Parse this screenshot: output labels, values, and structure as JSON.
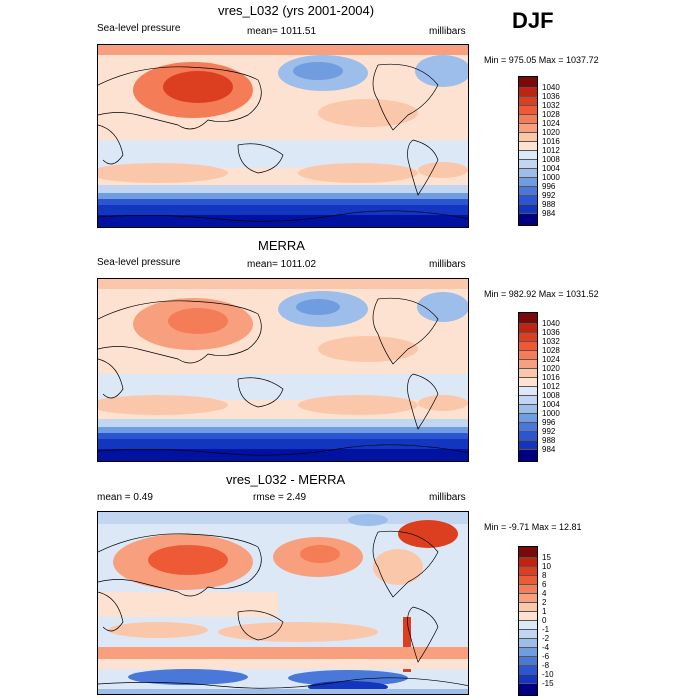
{
  "season": "DJF",
  "colors": {
    "land_line": "#000000",
    "warm": [
      "#fde2d2",
      "#fbc7aa",
      "#f8a07e",
      "#f47c56",
      "#ee5a36",
      "#dc3f20",
      "#bd2412",
      "#7a0a0a"
    ],
    "cool": [
      "#dde8f7",
      "#c2d6f1",
      "#9dbdea",
      "#6f9de0",
      "#4a78d8",
      "#2c56cf",
      "#1236c0",
      "#0012a0",
      "#000080"
    ]
  },
  "panels": [
    {
      "title": "vres_L032 (yrs 2001-2004)",
      "left": "Sea-level pressure",
      "center": "mean= 1011.51",
      "right": "millibars",
      "minmax": "Min = 975.05 Max = 1037.72",
      "colorbar": [
        "1040",
        "1036",
        "1032",
        "1028",
        "1024",
        "1020",
        "1016",
        "1012",
        "1008",
        "1004",
        "1000",
        "996",
        "992",
        "988",
        "984"
      ]
    },
    {
      "title": "MERRA",
      "left": "Sea-level pressure",
      "center": "mean= 1011.02",
      "right": "millibars",
      "minmax": "Min = 982.92 Max = 1031.52",
      "colorbar": [
        "1040",
        "1036",
        "1032",
        "1028",
        "1024",
        "1020",
        "1016",
        "1012",
        "1008",
        "1004",
        "1000",
        "996",
        "992",
        "988",
        "984"
      ]
    },
    {
      "title": "vres_L032 - MERRA",
      "left": "mean =   0.49",
      "center": "rmse =   2.49",
      "right": "millibars",
      "minmax": "Min =  -9.71 Max =  12.81",
      "colorbar": [
        "15",
        "10",
        "8",
        "6",
        "4",
        "2",
        "1",
        "0",
        "-1",
        "-2",
        "-4",
        "-6",
        "-8",
        "-10",
        "-15"
      ]
    }
  ]
}
